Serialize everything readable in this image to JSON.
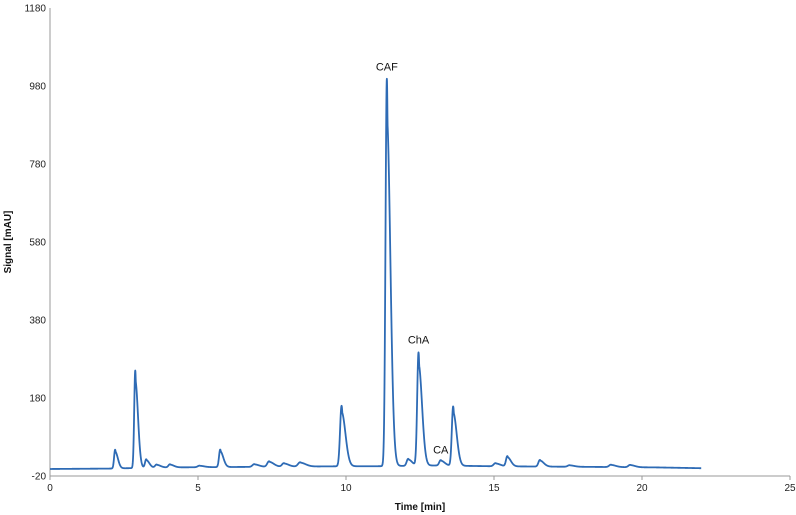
{
  "chart_data": {
    "type": "line",
    "title": "",
    "xlabel": "Time [min]",
    "ylabel": "Signal [mAU]",
    "xlim": [
      0,
      25
    ],
    "ylim": [
      -20,
      1180
    ],
    "xticks": [
      0,
      5,
      10,
      15,
      20,
      25
    ],
    "yticks": [
      -20,
      180,
      380,
      580,
      780,
      980,
      1180
    ],
    "xtick_labels": [
      "0",
      "5",
      "10",
      "15",
      "20",
      "25"
    ],
    "ytick_labels": [
      "-20",
      "180",
      "380",
      "580",
      "780",
      "980",
      "1180"
    ],
    "grid": false,
    "line_color": "#2e6bb5",
    "baseline": {
      "x": [
        0,
        2.0,
        2.6,
        4.0,
        6.0,
        8.0,
        10.0,
        11.0,
        12.0,
        13.0,
        14.0,
        15.0,
        17.0,
        19.0,
        20.5,
        22.0
      ],
      "y": [
        -2,
        -1,
        0,
        2,
        3,
        4,
        5,
        5,
        6,
        7,
        6,
        5,
        4,
        3,
        2,
        0
      ]
    },
    "peaks": [
      {
        "x": 2.2,
        "height": 48,
        "width": 0.035
      },
      {
        "x": 2.88,
        "height": 250,
        "width": 0.035
      },
      {
        "x": 3.25,
        "height": 22,
        "width": 0.04
      },
      {
        "x": 3.6,
        "height": 8,
        "width": 0.05
      },
      {
        "x": 4.05,
        "height": 8,
        "width": 0.05
      },
      {
        "x": 5.05,
        "height": 4,
        "width": 0.06
      },
      {
        "x": 5.75,
        "height": 45,
        "width": 0.04
      },
      {
        "x": 6.9,
        "height": 7,
        "width": 0.06
      },
      {
        "x": 7.4,
        "height": 14,
        "width": 0.06
      },
      {
        "x": 7.9,
        "height": 9,
        "width": 0.06
      },
      {
        "x": 8.45,
        "height": 11,
        "width": 0.07
      },
      {
        "x": 9.85,
        "height": 155,
        "width": 0.05
      },
      {
        "x": 11.38,
        "height": 993,
        "width": 0.045
      },
      {
        "x": 12.1,
        "height": 18,
        "width": 0.05
      },
      {
        "x": 12.45,
        "height": 290,
        "width": 0.045
      },
      {
        "x": 13.2,
        "height": 14,
        "width": 0.05
      },
      {
        "x": 13.62,
        "height": 152,
        "width": 0.045
      },
      {
        "x": 15.05,
        "height": 8,
        "width": 0.06
      },
      {
        "x": 15.45,
        "height": 26,
        "width": 0.045
      },
      {
        "x": 16.55,
        "height": 17,
        "width": 0.05
      },
      {
        "x": 17.55,
        "height": 4,
        "width": 0.06
      },
      {
        "x": 18.95,
        "height": 6,
        "width": 0.06
      },
      {
        "x": 19.6,
        "height": 6,
        "width": 0.06
      }
    ],
    "x_end": 22.0,
    "annotations": [
      {
        "text": "CAF",
        "x": 11.38,
        "y": 1020
      },
      {
        "text": "ChA",
        "x": 12.45,
        "y": 320
      },
      {
        "text": "CA",
        "x": 13.2,
        "y": 38
      }
    ]
  }
}
